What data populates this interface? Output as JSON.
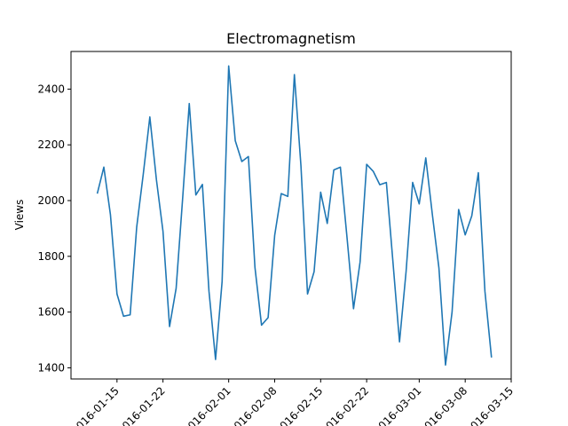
{
  "chart_data": {
    "type": "line",
    "title": "Electromagnetism",
    "xlabel": "",
    "ylabel": "Views",
    "x": [
      "2016-01-12",
      "2016-01-13",
      "2016-01-14",
      "2016-01-15",
      "2016-01-16",
      "2016-01-17",
      "2016-01-18",
      "2016-01-19",
      "2016-01-20",
      "2016-01-21",
      "2016-01-22",
      "2016-01-23",
      "2016-01-24",
      "2016-01-25",
      "2016-01-26",
      "2016-01-27",
      "2016-01-28",
      "2016-01-29",
      "2016-01-30",
      "2016-01-31",
      "2016-02-01",
      "2016-02-02",
      "2016-02-03",
      "2016-02-04",
      "2016-02-05",
      "2016-02-06",
      "2016-02-07",
      "2016-02-08",
      "2016-02-09",
      "2016-02-10",
      "2016-02-11",
      "2016-02-12",
      "2016-02-13",
      "2016-02-14",
      "2016-02-15",
      "2016-02-16",
      "2016-02-17",
      "2016-02-18",
      "2016-02-19",
      "2016-02-20",
      "2016-02-21",
      "2016-02-22",
      "2016-02-23",
      "2016-02-24",
      "2016-02-25",
      "2016-02-26",
      "2016-02-27",
      "2016-02-28",
      "2016-02-29",
      "2016-03-01",
      "2016-03-02",
      "2016-03-03",
      "2016-03-04",
      "2016-03-05",
      "2016-03-06",
      "2016-03-07",
      "2016-03-08",
      "2016-03-09",
      "2016-03-10",
      "2016-03-11",
      "2016-03-12"
    ],
    "series": [
      {
        "color": "#1f77b4",
        "values": [
          2025,
          2120,
          1950,
          1665,
          1585,
          1590,
          1905,
          2095,
          2300,
          2075,
          1890,
          1548,
          1685,
          2010,
          2348,
          2020,
          2058,
          1675,
          1430,
          1710,
          2483,
          2215,
          2140,
          2158,
          1760,
          1553,
          1580,
          1875,
          2025,
          2015,
          2452,
          2125,
          1665,
          1745,
          2030,
          1918,
          2110,
          2120,
          1870,
          1612,
          1780,
          2130,
          2105,
          2057,
          2065,
          1780,
          1493,
          1745,
          2065,
          1988,
          2153,
          1950,
          1758,
          1410,
          1600,
          1968,
          1877,
          1945,
          2100,
          1675,
          1437
        ]
      }
    ],
    "xlim": [
      "2016-01-08",
      "2016-03-15"
    ],
    "ylim": [
      1360,
      2535
    ],
    "x_ticks": [
      {
        "date": "2016-01-15",
        "label": "2016-01-15"
      },
      {
        "date": "2016-01-22",
        "label": "2016-01-22"
      },
      {
        "date": "2016-02-01",
        "label": "2016-02-01"
      },
      {
        "date": "2016-02-08",
        "label": "2016-02-08"
      },
      {
        "date": "2016-02-15",
        "label": "2016-02-15"
      },
      {
        "date": "2016-02-22",
        "label": "2016-02-22"
      },
      {
        "date": "2016-03-01",
        "label": "2016-03-01"
      },
      {
        "date": "2016-03-08",
        "label": "2016-03-08"
      },
      {
        "date": "2016-03-15",
        "label": "2016-03-15"
      }
    ],
    "y_ticks": [
      1400,
      1600,
      1800,
      2000,
      2200,
      2400
    ],
    "grid": false,
    "legend": "none"
  }
}
